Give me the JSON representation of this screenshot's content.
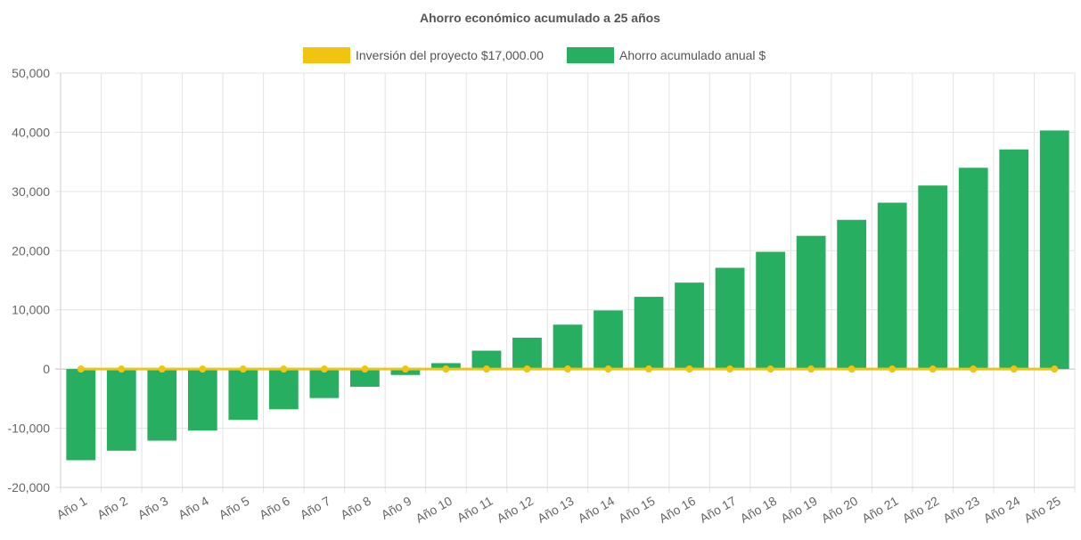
{
  "chart_data": {
    "type": "bar",
    "title": "Ahorro económico acumulado a 25 años",
    "categories": [
      "Año 1",
      "Año 2",
      "Año 3",
      "Año 4",
      "Año 5",
      "Año 6",
      "Año 7",
      "Año 8",
      "Año 9",
      "Año 10",
      "Año 11",
      "Año 12",
      "Año 13",
      "Año 14",
      "Año 15",
      "Año 16",
      "Año 17",
      "Año 18",
      "Año 19",
      "Año 20",
      "Año 21",
      "Año 22",
      "Año 23",
      "Año 24",
      "Año 25"
    ],
    "series": [
      {
        "name": "Inversión del proyecto $17,000.00",
        "type": "line",
        "color": "#f1c40f",
        "values": [
          0,
          0,
          0,
          0,
          0,
          0,
          0,
          0,
          0,
          0,
          0,
          0,
          0,
          0,
          0,
          0,
          0,
          0,
          0,
          0,
          0,
          0,
          0,
          0,
          0
        ]
      },
      {
        "name": "Ahorro acumulado anual $",
        "type": "bar",
        "color": "#27ae60",
        "values": [
          -15400,
          -13800,
          -12100,
          -10400,
          -8600,
          -6800,
          -4900,
          -3000,
          -1000,
          1000,
          3100,
          5300,
          7500,
          9900,
          12200,
          14600,
          17100,
          19800,
          22500,
          25200,
          28100,
          31000,
          34000,
          37100,
          40300
        ]
      }
    ],
    "yticks": [
      "50,000",
      "40,000",
      "30,000",
      "20,000",
      "10,000",
      "0",
      "-10,000",
      "-20,000"
    ],
    "ylim": [
      -20000,
      50000
    ],
    "grid": true,
    "legend_position": "top"
  }
}
